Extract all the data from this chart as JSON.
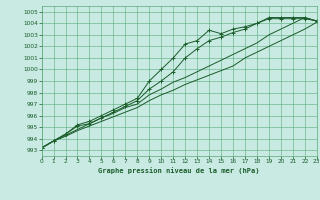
{
  "title": "Graphe pression niveau de la mer (hPa)",
  "bg_color": "#c8eae2",
  "grid_color": "#5aaa7a",
  "line_color": "#1a5c2a",
  "xlim": [
    0,
    23
  ],
  "ylim": [
    992.5,
    1005.5
  ],
  "yticks": [
    993,
    994,
    995,
    996,
    997,
    998,
    999,
    1000,
    1001,
    1002,
    1003,
    1004,
    1005
  ],
  "xticks": [
    0,
    1,
    2,
    3,
    4,
    5,
    6,
    7,
    8,
    9,
    10,
    11,
    12,
    13,
    14,
    15,
    16,
    17,
    18,
    19,
    20,
    21,
    22,
    23
  ],
  "line1": [
    993.2,
    993.8,
    994.4,
    995.2,
    995.5,
    996.0,
    996.5,
    997.0,
    997.5,
    999.0,
    1000.0,
    1001.0,
    1002.2,
    1002.5,
    1003.4,
    1003.1,
    1003.5,
    1003.7,
    1004.0,
    1004.5,
    1004.5,
    1004.5,
    1004.5,
    1004.2
  ],
  "line2": [
    993.2,
    993.8,
    994.4,
    995.1,
    995.3,
    995.8,
    996.3,
    996.8,
    997.3,
    998.3,
    999.0,
    999.8,
    1001.0,
    1001.8,
    1002.5,
    1002.8,
    1003.2,
    1003.5,
    1004.0,
    1004.4,
    1004.4,
    1004.4,
    1004.4,
    1004.2
  ],
  "line3": [
    993.2,
    993.8,
    994.3,
    994.8,
    995.3,
    995.8,
    996.2,
    996.7,
    997.0,
    997.8,
    998.3,
    998.9,
    999.3,
    999.8,
    1000.3,
    1000.8,
    1001.3,
    1001.8,
    1002.3,
    1003.0,
    1003.5,
    1004.0,
    1004.5,
    1004.2
  ],
  "line4": [
    993.2,
    993.8,
    994.2,
    994.7,
    995.1,
    995.5,
    995.9,
    996.3,
    996.7,
    997.3,
    997.8,
    998.2,
    998.7,
    999.1,
    999.5,
    999.9,
    1000.3,
    1001.0,
    1001.5,
    1002.0,
    1002.5,
    1003.0,
    1003.5,
    1004.1
  ]
}
